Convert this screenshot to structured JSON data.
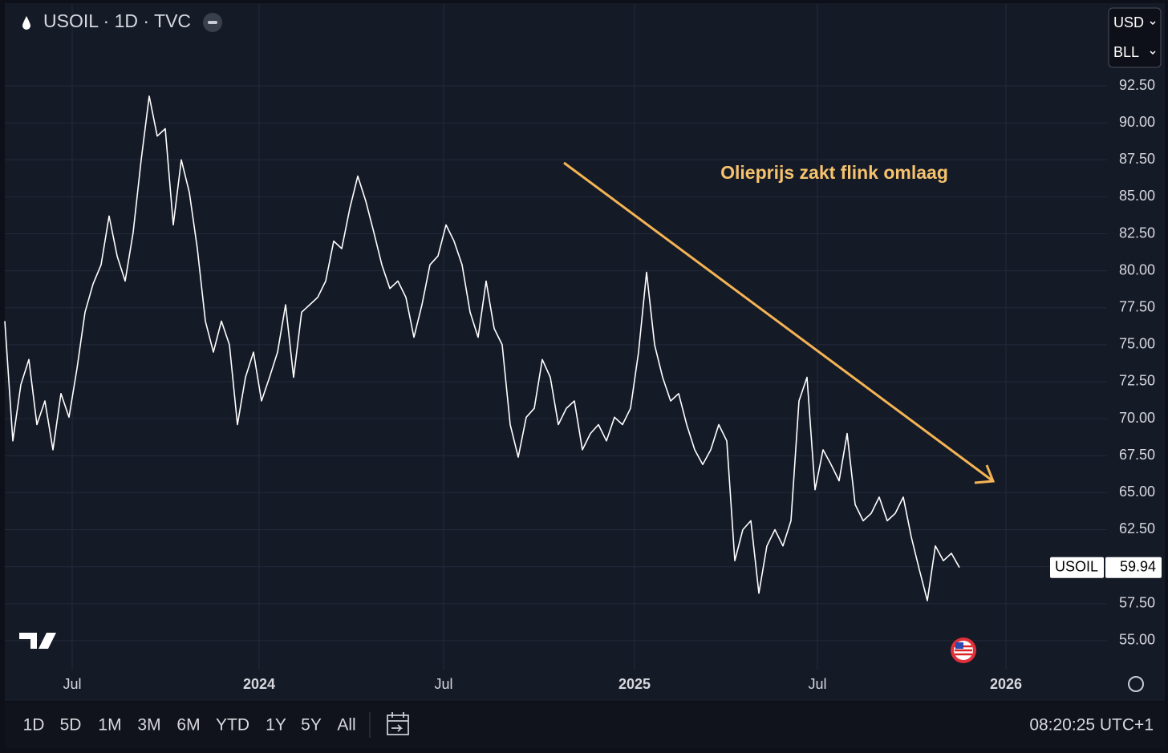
{
  "chart_data": {
    "type": "line",
    "title": "USOIL · 1D · TVC",
    "annotation": "Olieprijs zakt flink omlaag",
    "series": [
      {
        "name": "USOIL",
        "color": "#ffffff",
        "values": [
          76.6,
          68.5,
          72.3,
          74.0,
          69.6,
          71.2,
          67.9,
          71.7,
          70.1,
          73.4,
          77.2,
          79.1,
          80.4,
          83.7,
          81.0,
          79.3,
          82.6,
          87.5,
          91.8,
          89.1,
          89.6,
          83.1,
          87.5,
          85.3,
          81.5,
          76.6,
          74.5,
          76.6,
          75.0,
          69.6,
          72.8,
          74.5,
          71.2,
          72.8,
          74.5,
          77.7,
          72.8,
          77.2,
          77.7,
          78.2,
          79.3,
          82.0,
          81.5,
          84.2,
          86.4,
          84.7,
          82.6,
          80.4,
          78.8,
          79.3,
          78.2,
          75.5,
          77.7,
          80.4,
          81.0,
          83.1,
          82.0,
          80.4,
          77.2,
          75.5,
          79.3,
          76.1,
          75.0,
          69.6,
          67.4,
          70.1,
          70.7,
          74.0,
          72.8,
          69.6,
          70.7,
          71.2,
          67.9,
          69.0,
          69.6,
          68.5,
          70.1,
          69.6,
          70.7,
          74.5,
          79.9,
          75.0,
          72.8,
          71.2,
          71.7,
          69.6,
          67.9,
          66.9,
          67.9,
          69.6,
          68.5,
          60.4,
          62.5,
          63.1,
          58.2,
          61.4,
          62.5,
          61.4,
          63.1,
          71.2,
          72.8,
          65.2,
          67.9,
          66.9,
          65.8,
          69.0,
          64.2,
          63.1,
          63.6,
          64.7,
          63.1,
          63.6,
          64.7,
          62.0,
          59.8,
          57.7,
          61.4,
          60.4,
          60.9,
          59.94
        ]
      }
    ],
    "xlim": [
      0,
      137.4
    ],
    "xticks": [
      {
        "value": 8.4,
        "label": "Jul"
      },
      {
        "value": 31.7,
        "label": "2024"
      },
      {
        "value": 54.7,
        "label": "Jul"
      },
      {
        "value": 78.5,
        "label": "2025"
      },
      {
        "value": 101.3,
        "label": "Jul"
      },
      {
        "value": 124.8,
        "label": "2026"
      }
    ],
    "ylim": [
      53.04,
      98.03
    ],
    "yticks": [
      {
        "value": 55,
        "label": "55.00"
      },
      {
        "value": 57.5,
        "label": "57.50"
      },
      {
        "value": 60,
        "label": "60.00"
      },
      {
        "value": 62.5,
        "label": "62.50"
      },
      {
        "value": 65,
        "label": "65.00"
      },
      {
        "value": 67.5,
        "label": "67.50"
      },
      {
        "value": 70,
        "label": "70.00"
      },
      {
        "value": 72.5,
        "label": "72.50"
      },
      {
        "value": 75,
        "label": "75.00"
      },
      {
        "value": 77.5,
        "label": "77.50"
      },
      {
        "value": 80,
        "label": "80.00"
      },
      {
        "value": 82.5,
        "label": "82.50"
      },
      {
        "value": 85,
        "label": "85.00"
      },
      {
        "value": 87.5,
        "label": "87.50"
      },
      {
        "value": 90,
        "label": "90.00"
      },
      {
        "value": 92.5,
        "label": "92.50"
      }
    ],
    "grid": true
  },
  "currency": "USD",
  "unit": "BLL",
  "toolbar": {
    "ranges": [
      "1D",
      "5D",
      "1M",
      "3M",
      "6M",
      "YTD",
      "1Y",
      "5Y",
      "All"
    ],
    "time": "08:20:25 UTC+1"
  }
}
